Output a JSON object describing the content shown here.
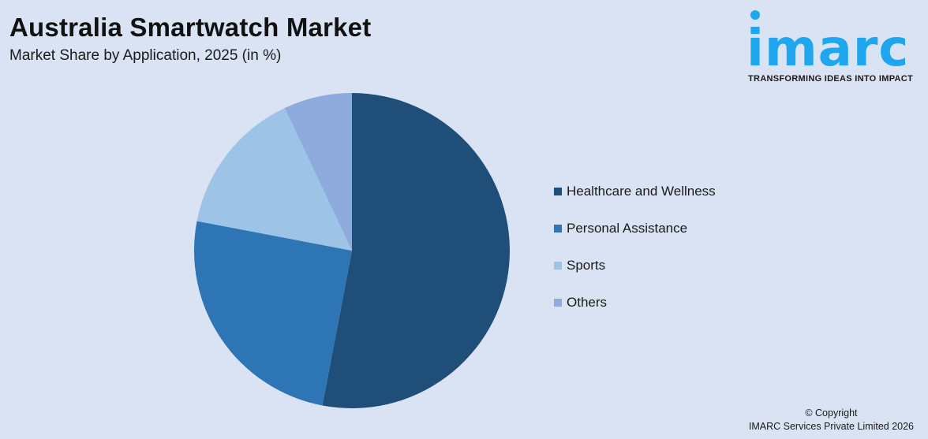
{
  "header": {
    "title": "Australia Smartwatch Market",
    "subtitle": "Market Share by Application, 2025 (in %)"
  },
  "logo": {
    "wordmark": "imarc",
    "tagline": "TRANSFORMING IDEAS INTO IMPACT",
    "color": "#1ea6ee"
  },
  "chart_data": {
    "type": "pie",
    "title": "Australia Smartwatch Market",
    "subtitle": "Market Share by Application, 2025 (in %)",
    "categories": [
      "Healthcare and Wellness",
      "Personal Assistance",
      "Sports",
      "Others"
    ],
    "values": [
      53,
      25,
      15,
      7
    ],
    "colors": [
      "#1f4e79",
      "#2e75b6",
      "#9dc3e6",
      "#8faadc"
    ],
    "start_angle": "12 o'clock, clockwise",
    "legend_position": "right"
  },
  "legend": {
    "items": [
      {
        "label": "Healthcare and Wellness",
        "color": "#1f4e79"
      },
      {
        "label": "Personal Assistance",
        "color": "#2e75b6"
      },
      {
        "label": "Sports",
        "color": "#9dc3e6"
      },
      {
        "label": "Others",
        "color": "#8faadc"
      }
    ]
  },
  "footer": {
    "copyright_line1": "© Copyright",
    "copyright_line2": "IMARC Services Private Limited 2026"
  }
}
